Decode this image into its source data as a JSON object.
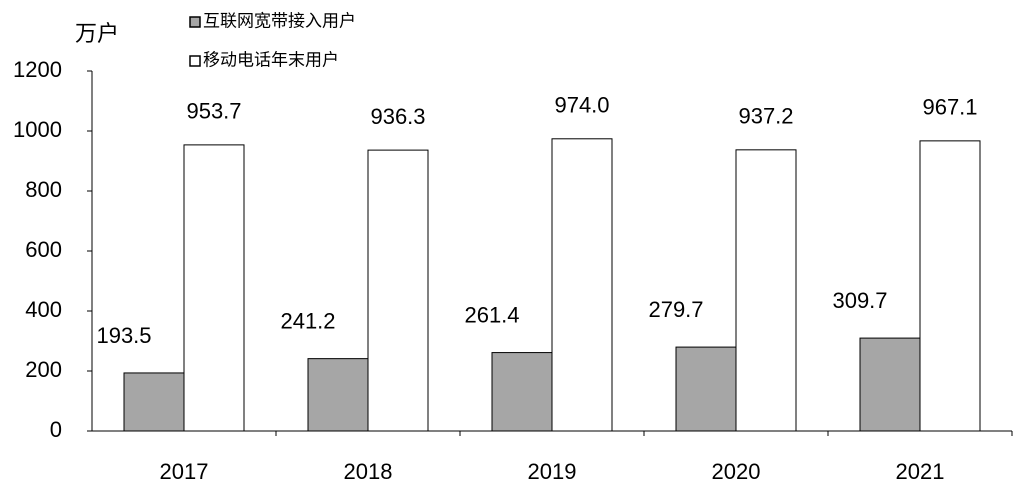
{
  "chart_data": {
    "type": "bar",
    "y_label": "万户",
    "categories": [
      "2017",
      "2018",
      "2019",
      "2020",
      "2021"
    ],
    "series": [
      {
        "name": "互联网宽带接入用户",
        "color": "#a6a6a6",
        "values": [
          193.5,
          241.2,
          261.4,
          279.7,
          309.7
        ],
        "value_labels": [
          "193.5",
          "241.2",
          "261.4",
          "279.7",
          "309.7"
        ]
      },
      {
        "name": "移动电话年末用户",
        "color": "#ffffff",
        "values": [
          953.7,
          936.3,
          974.0,
          937.2,
          967.1
        ],
        "value_labels": [
          "953.7",
          "936.3",
          "974.0",
          "937.2",
          "967.1"
        ]
      }
    ],
    "ylim": [
      0,
      1200
    ],
    "yticks": [
      0,
      200,
      400,
      600,
      800,
      1000,
      1200
    ],
    "grid": false
  }
}
